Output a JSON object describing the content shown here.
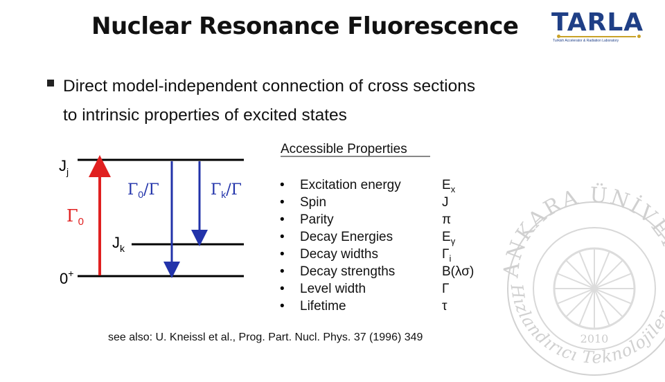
{
  "slide": {
    "title": "Nuclear Resonance Fluorescence",
    "bullet": "Direct model-independent connection of cross sections to intrinsic properties of excited states"
  },
  "logo": {
    "name": "TARLA",
    "subtitle": "Turkish Accelerator & Radiation Laboratory"
  },
  "seal": {
    "top_text": "ANKARA ÜNİVERSİTESİ",
    "bottom_text": "Hızlandırıcı Teknolojileri Enstitüsü",
    "year": "2010"
  },
  "level_diagram": {
    "upper_level": "J",
    "upper_level_sub": "j",
    "intermediate_level": "J",
    "intermediate_level_sub": "k",
    "ground_level": "0",
    "ground_level_sup": "+",
    "excitation_label": "Γ",
    "excitation_label_sub": "0",
    "branch_ground_label": "Γ",
    "branch_ground_label_sub": "0",
    "branch_ground_label_tail": "/Γ",
    "branch_k_label": "Γ",
    "branch_k_label_sub": "k",
    "branch_k_label_tail": "/Γ",
    "colors": {
      "excitation": "#e02020",
      "decay": "#2233aa",
      "level": "#000000"
    }
  },
  "properties": {
    "header": "Accessible Properties",
    "items": [
      {
        "name": "Excitation energy",
        "symbol": "E",
        "sub": "x"
      },
      {
        "name": "Spin",
        "symbol": "J",
        "sub": ""
      },
      {
        "name": "Parity",
        "symbol": "π",
        "sub": ""
      },
      {
        "name": "Decay Energies",
        "symbol": "E",
        "sub": "γ"
      },
      {
        "name": "Decay widths",
        "symbol": "Γ",
        "sub": "i"
      },
      {
        "name": "Decay strengths",
        "symbol": "B(λσ)",
        "sub": ""
      },
      {
        "name": "Level width",
        "symbol": "Γ",
        "sub": ""
      },
      {
        "name": "Lifetime",
        "symbol": "τ",
        "sub": ""
      }
    ]
  },
  "reference": "see also: U. Kneissl et al., Prog. Part. Nucl. Phys. 37 (1996) 349"
}
